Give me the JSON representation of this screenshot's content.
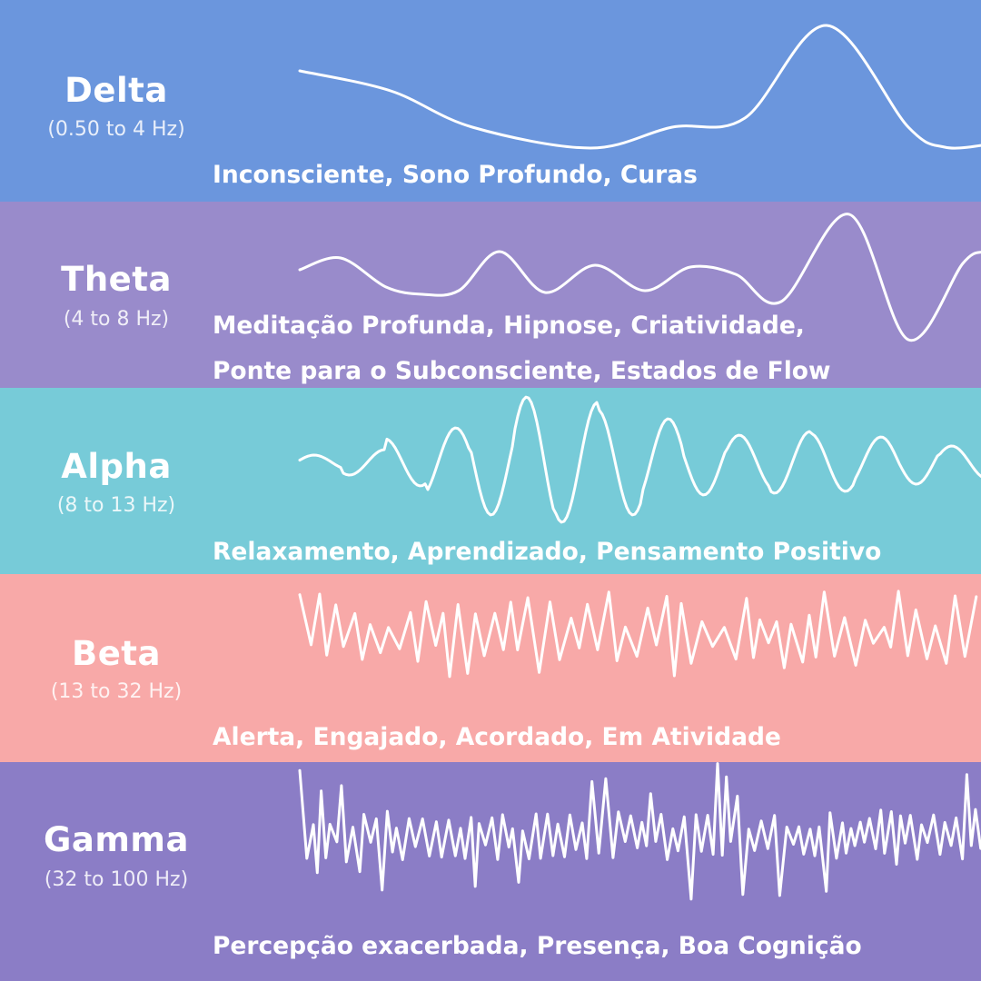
{
  "bands": [
    {
      "name": "Delta",
      "range": "(0.50 to 4 Hz)",
      "lines": [
        "Inconsciente, Sono Profundo, Curas"
      ],
      "color": "#6b96dd"
    },
    {
      "name": "Theta",
      "range": "(4 to 8 Hz)",
      "lines": [
        "Meditação Profunda, Hipnose, Criatividade,",
        "Ponte para o Subconsciente, Estados de Flow"
      ],
      "color": "#998bcb"
    },
    {
      "name": "Alpha",
      "range": "(8 to 13 Hz)",
      "lines": [
        "Relaxamento, Aprendizado, Pensamento Positivo"
      ],
      "color": "#77cbd8"
    },
    {
      "name": "Beta",
      "range": "(13 to 32 Hz)",
      "lines": [
        "Alerta, Engajado, Acordado, Em Atividade"
      ],
      "color": "#f8a9a8"
    },
    {
      "name": "Gamma",
      "range": "(32 to 100 Hz)",
      "lines": [
        "Percepção exacerbada, Presença, Boa Cognição"
      ],
      "color": "#8b7dc6"
    }
  ]
}
